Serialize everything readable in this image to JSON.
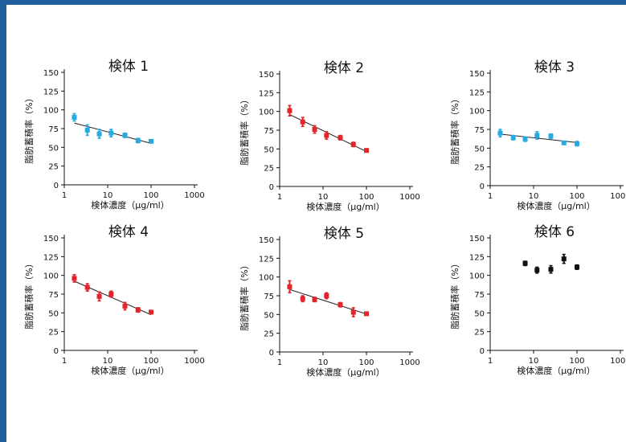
{
  "colors": {
    "blue": "#29a9e1",
    "red": "#e2242b",
    "black": "#111111",
    "frame": "#1f5f9e",
    "trend": "#222222"
  },
  "shared": {
    "xlabel": "検体濃度（μg/ml）",
    "ylabel": "脂肪蓄積率（%）",
    "x_ticks": [
      "1",
      "10",
      "100",
      "1000"
    ],
    "y_ticks": [
      "0",
      "25",
      "50",
      "75",
      "100",
      "125",
      "150"
    ],
    "x_scale": "log10",
    "xlim": [
      1,
      1000
    ],
    "ylim": [
      0,
      150
    ]
  },
  "chart_data": [
    {
      "type": "scatter",
      "title": "検体 1",
      "color": "blue",
      "trendline": true,
      "x": [
        1.7,
        3.4,
        6.4,
        12,
        25,
        50,
        100
      ],
      "y": [
        90,
        73,
        68,
        69,
        66,
        59,
        58
      ],
      "err": [
        5,
        7,
        6,
        5,
        3,
        3,
        2
      ]
    },
    {
      "type": "scatter",
      "title": "検体 2",
      "color": "red",
      "trendline": true,
      "x": [
        1.7,
        3.4,
        6.4,
        12,
        25,
        50,
        100
      ],
      "y": [
        101,
        86,
        76,
        68,
        65,
        56,
        48
      ],
      "err": [
        7,
        6,
        5,
        5,
        3,
        3,
        2
      ]
    },
    {
      "type": "scatter",
      "title": "検体 3",
      "color": "blue",
      "trendline": true,
      "x": [
        1.7,
        3.4,
        6.4,
        12,
        25,
        50,
        100
      ],
      "y": [
        70,
        64,
        62,
        67,
        66,
        57,
        56
      ],
      "err": [
        5,
        3,
        3,
        5,
        3,
        2,
        3
      ]
    },
    {
      "type": "scatter",
      "title": "検体 4",
      "color": "red",
      "trendline": true,
      "x": [
        1.7,
        3.4,
        6.4,
        12,
        25,
        50,
        100
      ],
      "y": [
        96,
        84,
        72,
        75,
        59,
        54,
        51
      ],
      "err": [
        5,
        5,
        6,
        4,
        5,
        3,
        2
      ]
    },
    {
      "type": "scatter",
      "title": "検体 5",
      "color": "red",
      "trendline": true,
      "x": [
        1.7,
        3.4,
        6.4,
        12,
        25,
        50,
        100
      ],
      "y": [
        87,
        71,
        70,
        75,
        63,
        53,
        51
      ],
      "err": [
        8,
        4,
        3,
        4,
        3,
        6,
        2
      ]
    },
    {
      "type": "scatter",
      "title": "検体 6",
      "color": "black",
      "trendline": false,
      "x": [
        6.4,
        12,
        25,
        50,
        100
      ],
      "y": [
        116,
        107,
        108,
        122,
        111
      ],
      "err": [
        3,
        4,
        5,
        6,
        3
      ]
    }
  ]
}
